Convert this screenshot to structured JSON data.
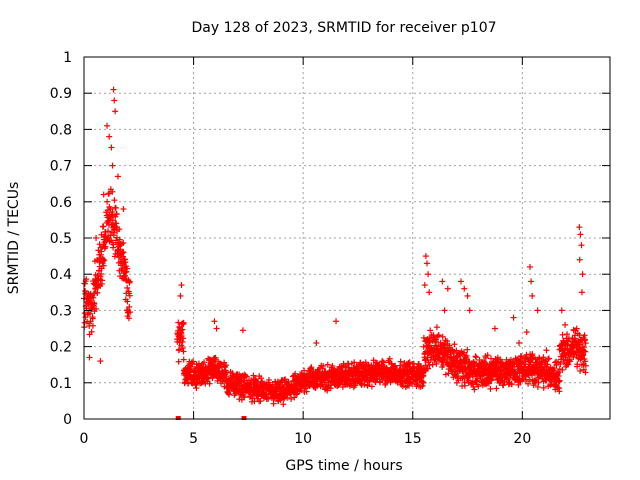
{
  "chart_data": {
    "type": "scatter",
    "title": "Day 128 of 2023, SRMTID for receiver p107",
    "xlabel": "GPS time / hours",
    "ylabel": "SRMTID / TECUs",
    "xlim": [
      0,
      24
    ],
    "ylim": [
      0,
      1
    ],
    "xticks": [
      0,
      5,
      10,
      15,
      20
    ],
    "xtick_labels": [
      "0",
      "5",
      "10",
      "15",
      "20"
    ],
    "yticks": [
      0,
      0.1,
      0.2,
      0.3,
      0.4,
      0.5,
      0.6,
      0.7,
      0.8,
      0.9,
      1
    ],
    "ytick_labels": [
      "0",
      "0.1",
      "0.2",
      "0.3",
      "0.4",
      "0.5",
      "0.6",
      "0.7",
      "0.8",
      "0.9",
      "1"
    ],
    "grid": true,
    "marker": "plus",
    "color": "#ff0000",
    "series": [
      {
        "name": "SRMTID",
        "segments": [
          {
            "t0": 0.0,
            "t1": 2.1,
            "base": [
              [
                0,
                0.32
              ],
              [
                0.3,
                0.3
              ],
              [
                0.6,
                0.38
              ],
              [
                0.9,
                0.48
              ],
              [
                1.2,
                0.58
              ],
              [
                1.5,
                0.5
              ],
              [
                1.8,
                0.42
              ],
              [
                2.1,
                0.3
              ]
            ],
            "spread": 0.09
          },
          {
            "t0": 4.25,
            "t1": 4.55,
            "base": [
              [
                4.25,
                0.22
              ],
              [
                4.55,
                0.25
              ]
            ],
            "spread": 0.07
          },
          {
            "t0": 4.55,
            "t1": 6.5,
            "base": [
              [
                4.55,
                0.13
              ],
              [
                5.2,
                0.12
              ],
              [
                6.0,
                0.14
              ],
              [
                6.5,
                0.12
              ]
            ],
            "spread": 0.04
          },
          {
            "t0": 6.5,
            "t1": 10.0,
            "base": [
              [
                6.5,
                0.1
              ],
              [
                8.0,
                0.08
              ],
              [
                9.0,
                0.07
              ],
              [
                10.0,
                0.1
              ]
            ],
            "spread": 0.04
          },
          {
            "t0": 10.0,
            "t1": 15.5,
            "base": [
              [
                10.0,
                0.11
              ],
              [
                12.0,
                0.12
              ],
              [
                14.0,
                0.13
              ],
              [
                15.5,
                0.12
              ]
            ],
            "spread": 0.04
          },
          {
            "t0": 15.5,
            "t1": 17.5,
            "base": [
              [
                15.5,
                0.18
              ],
              [
                16.2,
                0.2
              ],
              [
                17.0,
                0.15
              ],
              [
                17.5,
                0.14
              ]
            ],
            "spread": 0.06
          },
          {
            "t0": 17.5,
            "t1": 21.7,
            "base": [
              [
                17.5,
                0.13
              ],
              [
                19.0,
                0.13
              ],
              [
                20.5,
                0.14
              ],
              [
                21.7,
                0.12
              ]
            ],
            "spread": 0.05
          },
          {
            "t0": 21.7,
            "t1": 22.9,
            "base": [
              [
                21.7,
                0.18
              ],
              [
                22.4,
                0.2
              ],
              [
                22.9,
                0.17
              ]
            ],
            "spread": 0.06
          }
        ],
        "peaks": [
          {
            "x": 1.35,
            "y": 0.91
          },
          {
            "x": 1.38,
            "y": 0.88
          },
          {
            "x": 1.42,
            "y": 0.85
          },
          {
            "x": 1.05,
            "y": 0.81
          },
          {
            "x": 1.15,
            "y": 0.78
          },
          {
            "x": 1.25,
            "y": 0.75
          },
          {
            "x": 1.3,
            "y": 0.7
          },
          {
            "x": 1.55,
            "y": 0.67
          },
          {
            "x": 0.9,
            "y": 0.62
          },
          {
            "x": 0.55,
            "y": 0.5
          },
          {
            "x": 1.8,
            "y": 0.58
          },
          {
            "x": 0.75,
            "y": 0.16
          },
          {
            "x": 0.25,
            "y": 0.17
          },
          {
            "x": 4.45,
            "y": 0.37
          },
          {
            "x": 4.4,
            "y": 0.34
          },
          {
            "x": 5.95,
            "y": 0.27
          },
          {
            "x": 6.05,
            "y": 0.25
          },
          {
            "x": 7.25,
            "y": 0.245
          },
          {
            "x": 11.5,
            "y": 0.27
          },
          {
            "x": 10.6,
            "y": 0.21
          },
          {
            "x": 15.6,
            "y": 0.45
          },
          {
            "x": 15.65,
            "y": 0.43
          },
          {
            "x": 15.7,
            "y": 0.4
          },
          {
            "x": 15.55,
            "y": 0.37
          },
          {
            "x": 15.75,
            "y": 0.35
          },
          {
            "x": 16.35,
            "y": 0.38
          },
          {
            "x": 16.6,
            "y": 0.36
          },
          {
            "x": 16.45,
            "y": 0.3
          },
          {
            "x": 17.2,
            "y": 0.38
          },
          {
            "x": 17.35,
            "y": 0.36
          },
          {
            "x": 17.5,
            "y": 0.34
          },
          {
            "x": 17.6,
            "y": 0.3
          },
          {
            "x": 18.75,
            "y": 0.25
          },
          {
            "x": 19.6,
            "y": 0.28
          },
          {
            "x": 19.85,
            "y": 0.21
          },
          {
            "x": 20.35,
            "y": 0.42
          },
          {
            "x": 20.4,
            "y": 0.38
          },
          {
            "x": 20.45,
            "y": 0.34
          },
          {
            "x": 20.7,
            "y": 0.3
          },
          {
            "x": 20.2,
            "y": 0.24
          },
          {
            "x": 21.1,
            "y": 0.19
          },
          {
            "x": 21.8,
            "y": 0.3
          },
          {
            "x": 21.95,
            "y": 0.26
          },
          {
            "x": 22.6,
            "y": 0.53
          },
          {
            "x": 22.65,
            "y": 0.51
          },
          {
            "x": 22.7,
            "y": 0.48
          },
          {
            "x": 22.62,
            "y": 0.44
          },
          {
            "x": 22.75,
            "y": 0.4
          },
          {
            "x": 22.72,
            "y": 0.35
          }
        ],
        "zero_points": [
          {
            "x": 4.3,
            "y": 0.0
          },
          {
            "x": 7.3,
            "y": 0.0
          }
        ]
      }
    ]
  }
}
